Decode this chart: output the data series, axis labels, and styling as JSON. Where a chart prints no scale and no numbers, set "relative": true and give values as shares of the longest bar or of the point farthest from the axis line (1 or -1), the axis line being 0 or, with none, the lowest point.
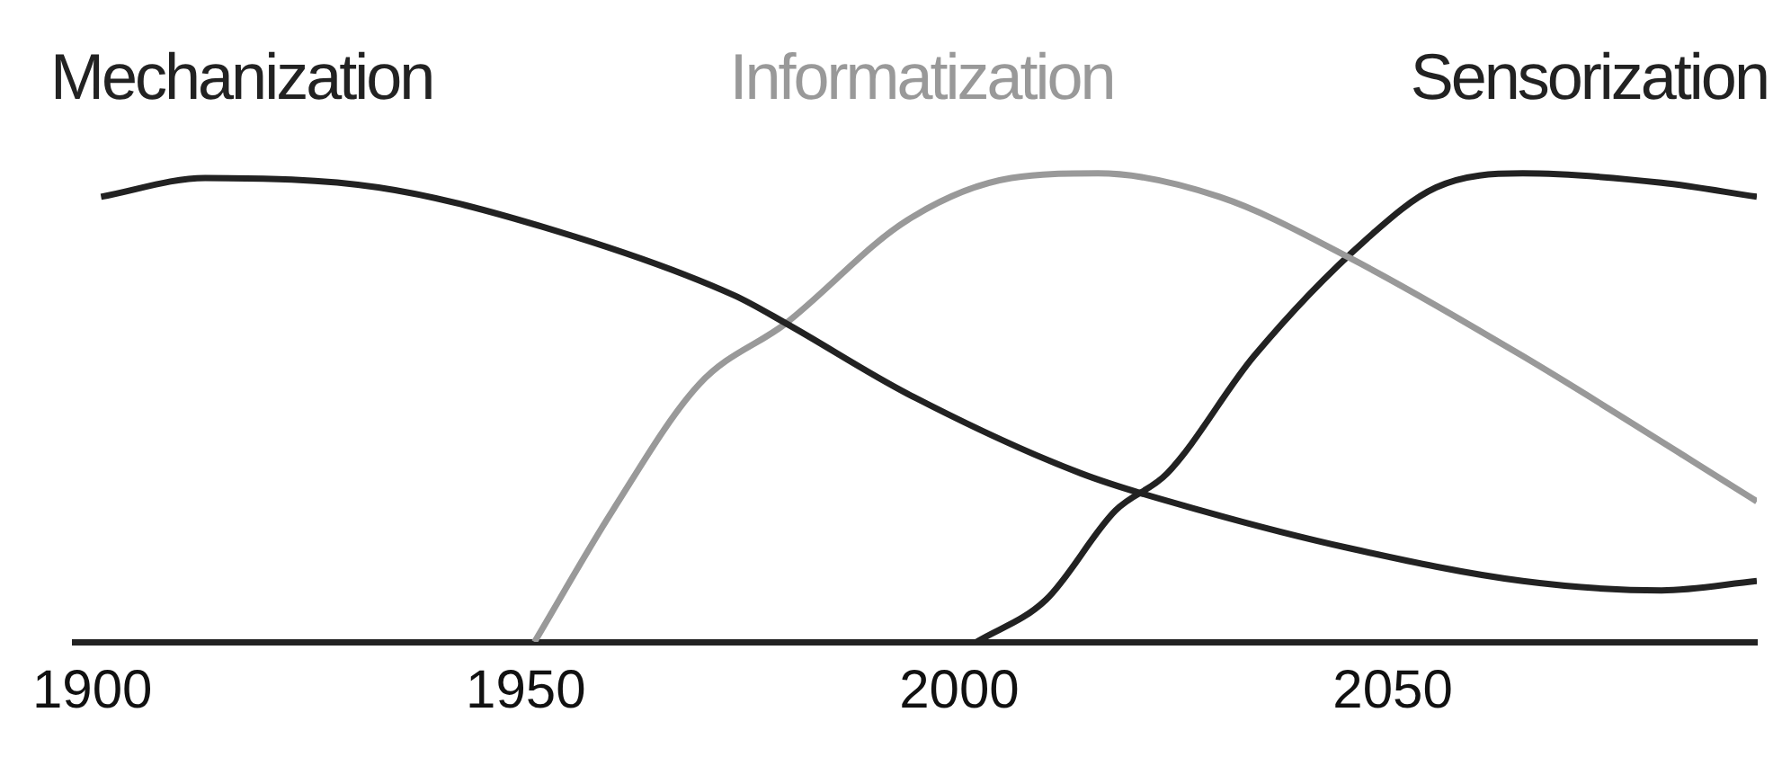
{
  "chart_data": {
    "type": "line",
    "relative": true,
    "legend": "top",
    "grid": false,
    "marker": "none",
    "line_style": "solid",
    "xlim": [
      1898,
      2092
    ],
    "xticks": [
      1900,
      1950,
      2000,
      2050
    ],
    "series": [
      {
        "name": "Mechanization",
        "color": "#222222",
        "x": [
          1901,
          1913,
          1933,
          1953,
          1974,
          1980,
          1994,
          2014,
          2028,
          2045,
          2065,
          2081,
          2092
        ],
        "values": [
          0.95,
          0.99,
          0.97,
          0.88,
          0.74,
          0.68,
          0.53,
          0.36,
          0.28,
          0.2,
          0.13,
          0.11,
          0.13
        ]
      },
      {
        "name": "Informatization",
        "color": "#999999",
        "x": [
          1951,
          1960,
          1970,
          1980,
          1994,
          2006,
          2016,
          2030,
          2045,
          2065,
          2092
        ],
        "values": [
          0,
          0.28,
          0.55,
          0.68,
          0.9,
          0.99,
          1,
          0.95,
          0.82,
          0.61,
          0.3
        ]
      },
      {
        "name": "Sensorization",
        "color": "#222222",
        "x": [
          2002,
          2010,
          2018,
          2024,
          2034,
          2047,
          2055,
          2065,
          2081,
          2092
        ],
        "values": [
          0,
          0.09,
          0.28,
          0.36,
          0.61,
          0.86,
          0.97,
          1,
          0.98,
          0.95
        ]
      }
    ]
  }
}
